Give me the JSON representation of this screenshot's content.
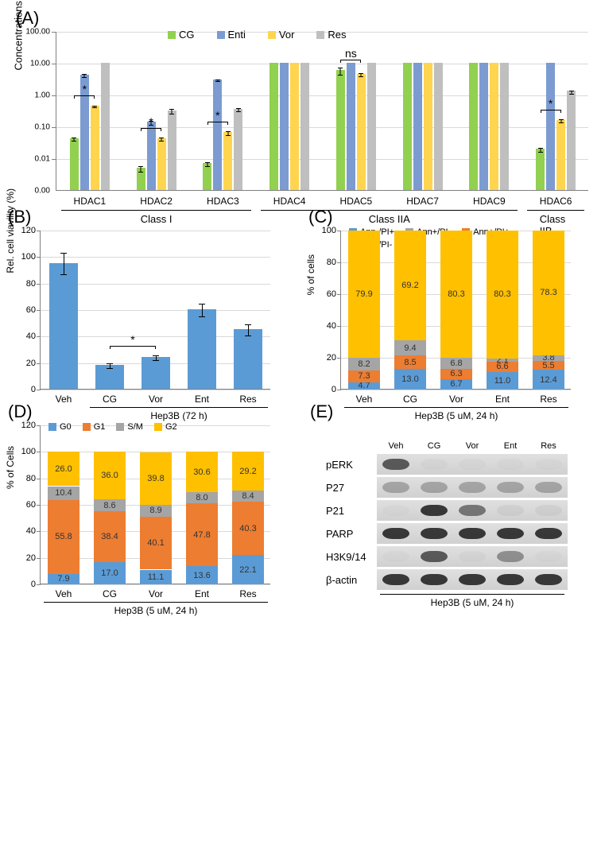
{
  "panels": {
    "A": "(A)",
    "B": "(B)",
    "C": "(C)",
    "D": "(D)",
    "E": "(E)"
  },
  "colors": {
    "CG": "#92d050",
    "Enti": "#7b9bd1",
    "Vor": "#ffd54f",
    "Res": "#bfbfbf",
    "blue": "#5b9bd5",
    "orange": "#ed7d31",
    "grey": "#a5a5a5",
    "yellow": "#ffc000",
    "text": "#333333",
    "grid": "#d9d9d9",
    "axis": "#808080"
  },
  "chartA": {
    "ylabel": "Concentrations (μM)",
    "yticks": [
      0.0,
      0.01,
      0.1,
      1.0,
      10.0,
      100.0
    ],
    "yticklabels": [
      "0.00",
      "0.01",
      "0.10",
      "1.00",
      "10.00",
      "100.00"
    ],
    "legend": [
      "CG",
      "Enti",
      "Vor",
      "Res"
    ],
    "categories": [
      "HDAC1",
      "HDAC2",
      "HDAC3",
      "HDAC4",
      "HDAC5",
      "HDAC6",
      "HDAC7",
      "HDAC9"
    ],
    "display_order": [
      "HDAC1",
      "HDAC2",
      "HDAC3",
      "HDAC4",
      "HDAC5",
      "HDAC7",
      "HDAC9",
      "HDAC6"
    ],
    "class_groups": [
      {
        "label": "Class I",
        "from": "HDAC1",
        "to": "HDAC3"
      },
      {
        "label": "Class IIA",
        "from": "HDAC4",
        "to": "HDAC9"
      },
      {
        "label": "Class IIB",
        "from": "HDAC6",
        "to": "HDAC6"
      }
    ],
    "data": {
      "HDAC1": {
        "CG": 0.042,
        "Enti": 4.2,
        "Vor": 0.45,
        "Res": 10,
        "err": {
          "CG": 0.005,
          "Enti": 0.4,
          "Vor": 0.03,
          "Res": 0
        }
      },
      "HDAC2": {
        "CG": 0.005,
        "Enti": 0.14,
        "Vor": 0.042,
        "Res": 0.32,
        "err": {
          "CG": 0.001,
          "Enti": 0.02,
          "Vor": 0.005,
          "Res": 0.05
        }
      },
      "HDAC3": {
        "CG": 0.007,
        "Enti": 3.0,
        "Vor": 0.065,
        "Res": 0.35,
        "err": {
          "CG": 0.001,
          "Enti": 0.2,
          "Vor": 0.008,
          "Res": 0.04
        }
      },
      "HDAC4": {
        "CG": 10,
        "Enti": 10,
        "Vor": 10,
        "Res": 10,
        "err": {
          "CG": 0,
          "Enti": 0,
          "Vor": 0,
          "Res": 0
        }
      },
      "HDAC5": {
        "CG": 6,
        "Enti": 10,
        "Vor": 4.5,
        "Res": 10,
        "err": {
          "CG": 1.5,
          "Enti": 0,
          "Vor": 0.5,
          "Res": 0
        }
      },
      "HDAC7": {
        "CG": 10,
        "Enti": 10,
        "Vor": 10,
        "Res": 10,
        "err": {
          "CG": 0,
          "Enti": 0,
          "Vor": 0,
          "Res": 0
        }
      },
      "HDAC9": {
        "CG": 10,
        "Enti": 10,
        "Vor": 10,
        "Res": 10,
        "err": {
          "CG": 0,
          "Enti": 0,
          "Vor": 0,
          "Res": 0
        }
      },
      "HDAC6": {
        "CG": 0.02,
        "Enti": 10,
        "Vor": 0.16,
        "Res": 1.3,
        "err": {
          "CG": 0.003,
          "Enti": 0,
          "Vor": 0.02,
          "Res": 0.15
        }
      }
    },
    "sig": [
      {
        "group": "HDAC1",
        "from": "CG",
        "to": "Vor",
        "label": "*"
      },
      {
        "group": "HDAC2",
        "from": "CG",
        "to": "Vor",
        "label": "*"
      },
      {
        "group": "HDAC3",
        "from": "CG",
        "to": "Vor",
        "label": "*"
      },
      {
        "group": "HDAC5",
        "from": "CG",
        "to": "Vor",
        "label": "ns"
      },
      {
        "group": "HDAC6",
        "from": "CG",
        "to": "Vor",
        "label": "*"
      }
    ]
  },
  "chartB": {
    "ylabel": "Rel. cell viavility (%)",
    "yticks": [
      0,
      20,
      40,
      60,
      80,
      100,
      120
    ],
    "categories": [
      "Veh",
      "CG",
      "Vor",
      "Ent",
      "Res"
    ],
    "values": [
      95,
      18,
      24,
      60,
      45
    ],
    "err": [
      8,
      2,
      2,
      5,
      4
    ],
    "sig": {
      "from": "CG",
      "to": "Vor",
      "label": "*"
    },
    "condition": "Hep3B (72 h)"
  },
  "chartC": {
    "ylabel": "% of cells",
    "yticks": [
      0,
      20,
      40,
      60,
      80,
      100
    ],
    "legend": [
      {
        "key": "ann_neg_pi_pos",
        "label": "Ann-/PI+",
        "color": "blue"
      },
      {
        "key": "ann_pos_pi_neg",
        "label": "Ann+/PI-",
        "color": "grey"
      },
      {
        "key": "ann_pos_pi_pos",
        "label": "Ann+/PI+",
        "color": "orange"
      },
      {
        "key": "ann_neg_pi_neg",
        "label": "Ann-/PI-",
        "color": "yellow"
      }
    ],
    "categories": [
      "Veh",
      "CG",
      "Vor",
      "Ent",
      "Res"
    ],
    "stacks": {
      "Veh": {
        "ann_neg_pi_pos": 4.7,
        "ann_pos_pi_pos": 7.3,
        "ann_pos_pi_neg": 8.2,
        "ann_neg_pi_neg": 79.9
      },
      "CG": {
        "ann_neg_pi_pos": 13.0,
        "ann_pos_pi_pos": 8.5,
        "ann_pos_pi_neg": 9.4,
        "ann_neg_pi_neg": 69.2
      },
      "Vor": {
        "ann_neg_pi_pos": 6.7,
        "ann_pos_pi_pos": 6.3,
        "ann_pos_pi_neg": 6.8,
        "ann_neg_pi_neg": 80.3
      },
      "Ent": {
        "ann_neg_pi_pos": 11.0,
        "ann_pos_pi_pos": 6.6,
        "ann_pos_pi_neg": 2.1,
        "ann_neg_pi_neg": 80.3
      },
      "Res": {
        "ann_neg_pi_pos": 12.4,
        "ann_pos_pi_pos": 5.5,
        "ann_pos_pi_neg": 3.8,
        "ann_neg_pi_neg": 78.3
      }
    },
    "stack_order": [
      "ann_neg_pi_pos",
      "ann_pos_pi_pos",
      "ann_pos_pi_neg",
      "ann_neg_pi_neg"
    ],
    "condition": "Hep3B (5 uM, 24 h)"
  },
  "chartD": {
    "ylabel": "% of Cells",
    "yticks": [
      0,
      20,
      40,
      60,
      80,
      100,
      120
    ],
    "legend": [
      {
        "key": "G0",
        "label": "G0",
        "color": "blue"
      },
      {
        "key": "G1",
        "label": "G1",
        "color": "orange"
      },
      {
        "key": "SM",
        "label": "S/M",
        "color": "grey"
      },
      {
        "key": "G2",
        "label": "G2",
        "color": "yellow"
      }
    ],
    "categories": [
      "Veh",
      "CG",
      "Vor",
      "Ent",
      "Res"
    ],
    "stacks": {
      "Veh": {
        "G0": 7.9,
        "G1": 55.8,
        "SM": 10.4,
        "G2": 26.0
      },
      "CG": {
        "G0": 17.0,
        "G1": 38.4,
        "SM": 8.6,
        "G2": 36.0
      },
      "Vor": {
        "G0": 11.1,
        "G1": 40.1,
        "SM": 8.9,
        "G2": 39.8
      },
      "Ent": {
        "G0": 13.6,
        "G1": 47.8,
        "SM": 8.0,
        "G2": 30.6
      },
      "Res": {
        "G0": 22.1,
        "G1": 40.3,
        "SM": 8.4,
        "G2": 29.2
      }
    },
    "stack_order": [
      "G0",
      "G1",
      "SM",
      "G2"
    ],
    "condition": "Hep3B (5 uM, 24 h)"
  },
  "panelE": {
    "rows": [
      "pERK",
      "P27",
      "P21",
      "PARP",
      "H3K9/14",
      "β-actin"
    ],
    "columns": [
      "Veh",
      "CG",
      "Vor",
      "Ent",
      "Res"
    ],
    "intensity": {
      "pERK": [
        0.8,
        0.1,
        0.05,
        0.05,
        0.05
      ],
      "P27": [
        0.5,
        0.5,
        0.5,
        0.5,
        0.5
      ],
      "P21": [
        0.05,
        0.9,
        0.7,
        0.2,
        0.2
      ],
      "PARP": [
        0.9,
        0.9,
        0.9,
        0.9,
        0.9
      ],
      "H3K9/14": [
        0.05,
        0.8,
        0.15,
        0.6,
        0.05
      ],
      "β-actin": [
        0.9,
        0.9,
        0.9,
        0.9,
        0.9
      ]
    },
    "condition": "Hep3B (5 uM, 24 h)"
  }
}
